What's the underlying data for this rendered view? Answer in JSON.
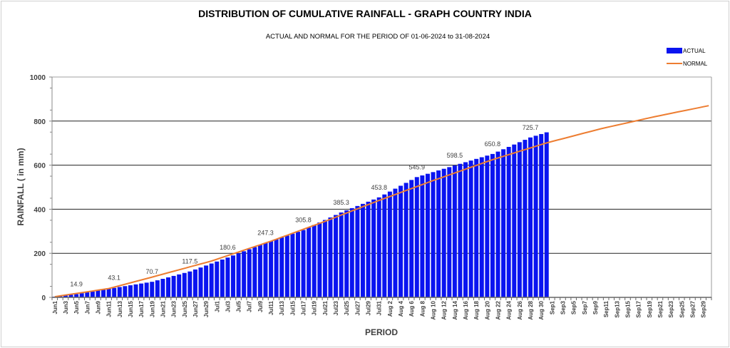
{
  "chart_data": {
    "type": "bar",
    "title": "DISTRIBUTION OF CUMULATIVE RAINFALL - GRAPH COUNTRY INDIA",
    "subtitle": "ACTUAL AND NORMAL FOR THE PERIOD OF 01-06-2024  to  31-08-2024",
    "xlabel": "PERIOD",
    "ylabel": "RAINFALL ( in mm)",
    "ylim": [
      0,
      1000
    ],
    "yticks": [
      0,
      200,
      400,
      600,
      800,
      1000
    ],
    "grid": true,
    "legend_position": "top-right",
    "num_days": 122,
    "tick_labels": [
      "Jun1",
      "Jun3",
      "Jun5",
      "Jun7",
      "Jun9",
      "Jun11",
      "Jun13",
      "Jun15",
      "Jun17",
      "Jun19",
      "Jun21",
      "Jun23",
      "Jun25",
      "Jun27",
      "Jun29",
      "Jul1",
      "Jul3",
      "Jul5",
      "Jul7",
      "Jul9",
      "Jul11",
      "Jul13",
      "Jul15",
      "Jul17",
      "Jul19",
      "Jul21",
      "Jul23",
      "Jul25",
      "Jul27",
      "Jul29",
      "Jul31",
      "Aug 2",
      "Aug 4",
      "Aug 6",
      "Aug 8",
      "Aug 10",
      "Aug 12",
      "Aug 14",
      "Aug 16",
      "Aug 18",
      "Aug 20",
      "Aug 22",
      "Aug 24",
      "Aug 26",
      "Aug 28",
      "Aug 30",
      "Sep1",
      "Sep3",
      "Sep5",
      "Sep7",
      "Sep9",
      "Sep11",
      "Sep13",
      "Sep15",
      "Sep17",
      "Sep19",
      "Sep21",
      "Sep23",
      "Sep25",
      "Sep27",
      "Sep29"
    ],
    "series": [
      {
        "name": "ACTUAL",
        "type": "bar",
        "color": "#0a14f0",
        "values": [
          3.0,
          6.0,
          8.9,
          11.9,
          14.9,
          18.9,
          23.0,
          27.0,
          31.0,
          35.0,
          39.1,
          43.1,
          47.0,
          51.0,
          54.9,
          58.9,
          62.8,
          66.8,
          70.7,
          77.4,
          84.1,
          90.8,
          97.4,
          104.1,
          110.8,
          117.5,
          126.5,
          135.5,
          144.5,
          153.6,
          162.6,
          171.6,
          180.6,
          190.1,
          199.7,
          209.2,
          218.7,
          228.2,
          237.8,
          247.3,
          255.7,
          264.0,
          272.4,
          280.7,
          289.1,
          297.4,
          305.8,
          317.2,
          328.5,
          339.9,
          351.2,
          362.6,
          373.9,
          385.3,
          395.1,
          404.9,
          414.7,
          424.4,
          434.2,
          444.0,
          453.8,
          467.0,
          480.1,
          493.3,
          506.5,
          519.6,
          532.8,
          545.9,
          553.4,
          560.9,
          568.5,
          576.0,
          583.5,
          591.0,
          598.5,
          606.0,
          613.4,
          620.9,
          628.4,
          635.9,
          643.3,
          650.8,
          661.5,
          672.2,
          682.9,
          693.6,
          704.3,
          715.0,
          725.7,
          733.5,
          741.2,
          749.0
        ]
      },
      {
        "name": "NORMAL",
        "type": "line",
        "color": "#ed7d31",
        "values": [
          3,
          6.7,
          10.4,
          14.1,
          17.8,
          21.5,
          25.2,
          28.9,
          32.6,
          36.3,
          40,
          46.5,
          53,
          59.5,
          66,
          72.5,
          79,
          85.5,
          92,
          98.6,
          105.3,
          111.9,
          118.5,
          125.2,
          131.8,
          138.5,
          145.1,
          151.7,
          158.4,
          165,
          173.2,
          181.4,
          189.5,
          197.7,
          205.9,
          214.1,
          222.3,
          230.5,
          238.6,
          246.8,
          255,
          264,
          273,
          282,
          291,
          300,
          309,
          318,
          327,
          336,
          345,
          354.5,
          364,
          373.5,
          383,
          392.5,
          402,
          411.5,
          421,
          430.5,
          440,
          449,
          458,
          467,
          476,
          485,
          494,
          503,
          512,
          521,
          530,
          538.6,
          547.3,
          555.9,
          564.5,
          573.2,
          581.8,
          590.5,
          599.1,
          607.7,
          616.4,
          625,
          632.6,
          640.2,
          647.8,
          655.4,
          663,
          670.6,
          678.2,
          685.8,
          693.4,
          701,
          707.4,
          713.8,
          720.2,
          726.6,
          733,
          739.4,
          745.8,
          752.2,
          758.6,
          765,
          770.5,
          776,
          781.5,
          787,
          792.5,
          798,
          803.5,
          809,
          814.5,
          820,
          825,
          830,
          835,
          840,
          845,
          850,
          855,
          860,
          865,
          870
        ]
      }
    ],
    "data_labels": [
      {
        "day": 4,
        "text": "14.9"
      },
      {
        "day": 11,
        "text": "43.1"
      },
      {
        "day": 18,
        "text": "70.7"
      },
      {
        "day": 25,
        "text": "117.5"
      },
      {
        "day": 32,
        "text": "180.6"
      },
      {
        "day": 39,
        "text": "247.3"
      },
      {
        "day": 46,
        "text": "305.8"
      },
      {
        "day": 53,
        "text": "385.3"
      },
      {
        "day": 60,
        "text": "453.8"
      },
      {
        "day": 67,
        "text": "545.9"
      },
      {
        "day": 74,
        "text": "598.5"
      },
      {
        "day": 81,
        "text": "650.8"
      },
      {
        "day": 88,
        "text": "725.7"
      }
    ]
  }
}
